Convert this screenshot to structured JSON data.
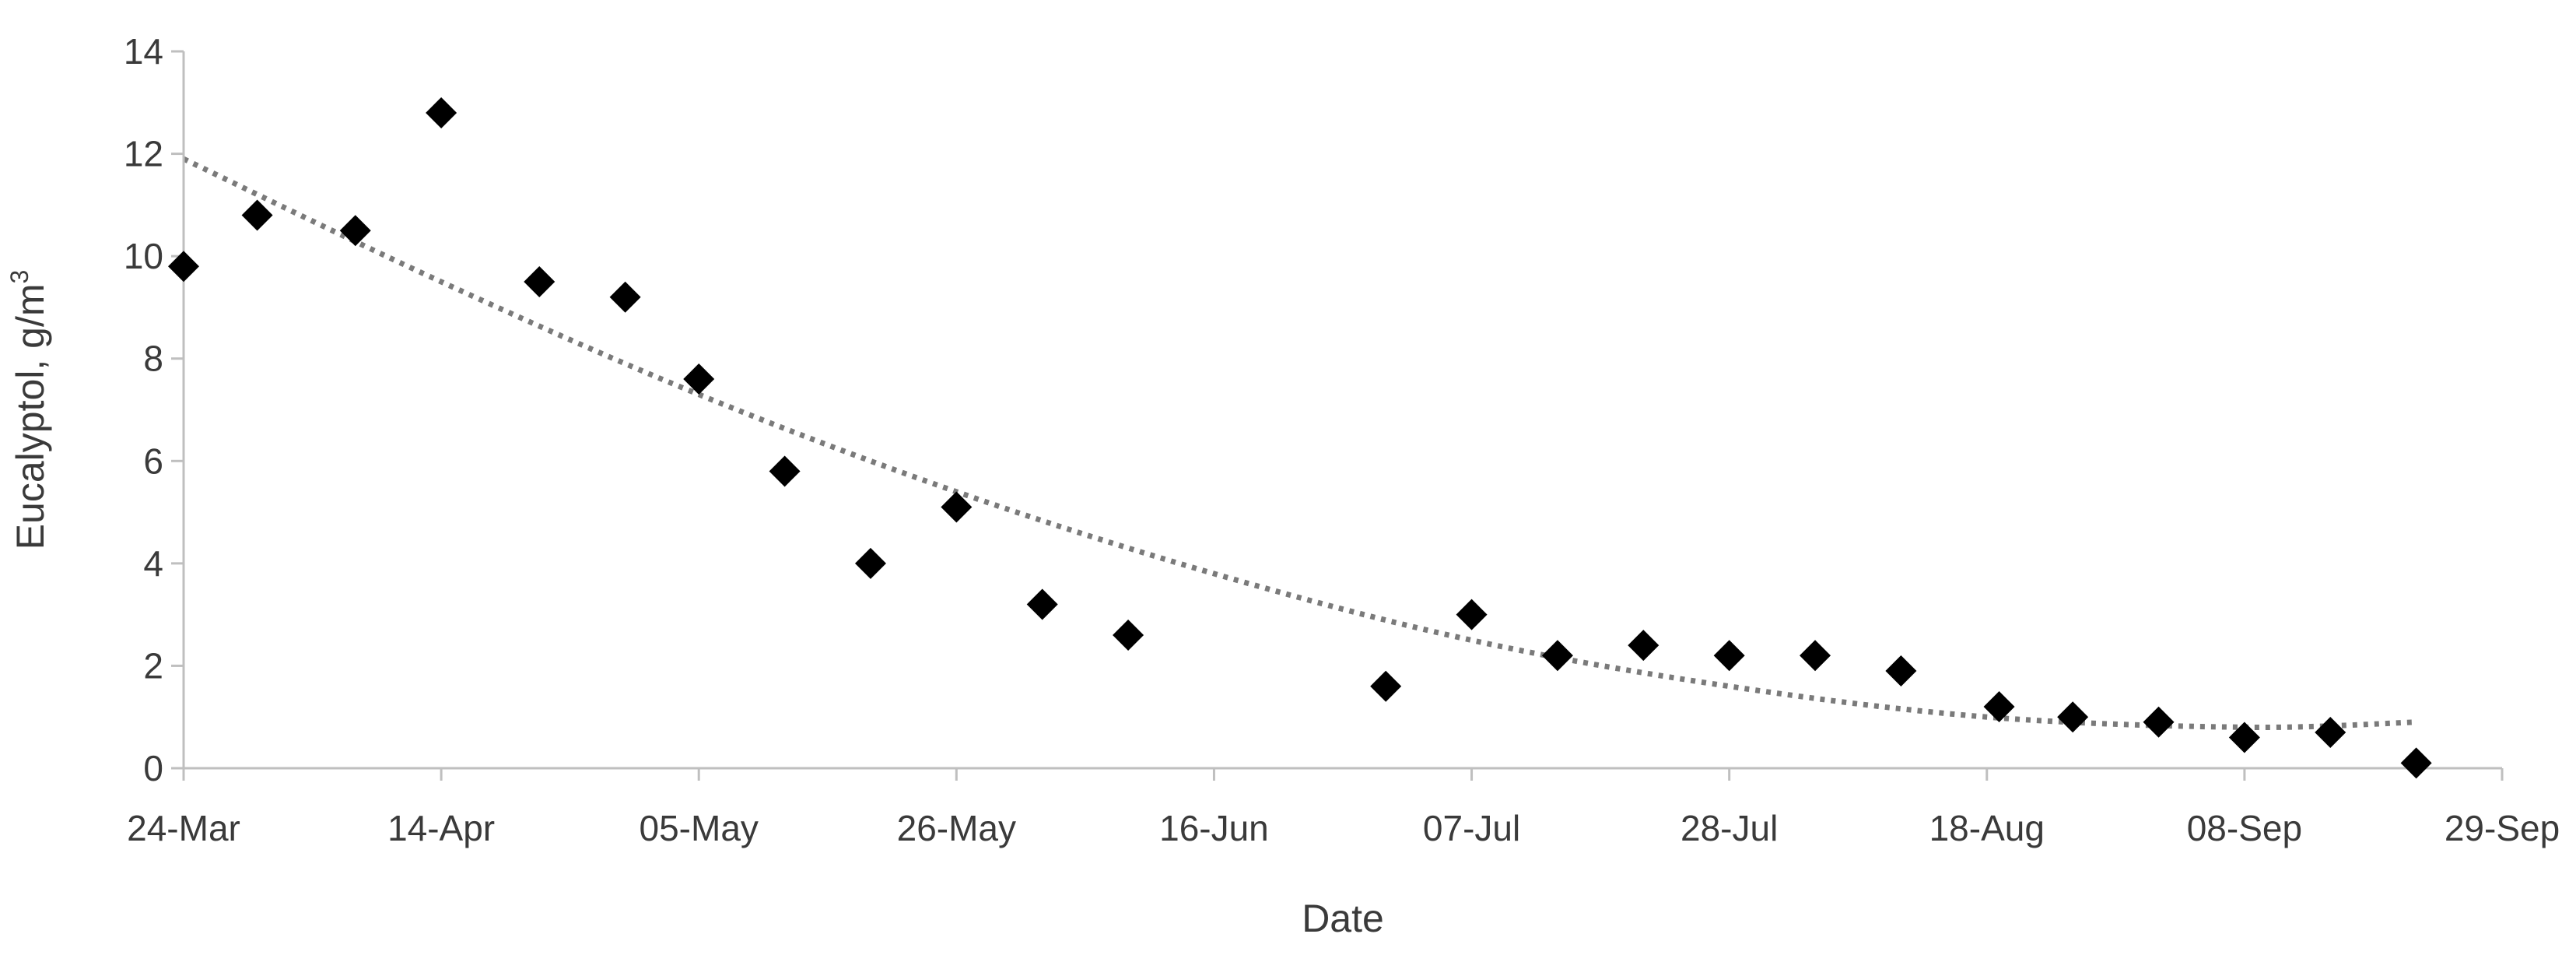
{
  "chart_data": {
    "type": "scatter",
    "title": "",
    "xlabel": "Date",
    "ylabel": "Eucalyptol, g/m",
    "ylabel_superscript": "3",
    "x_tick_labels": [
      "24-Mar",
      "14-Apr",
      "05-May",
      "26-May",
      "16-Jun",
      "07-Jul",
      "28-Jul",
      "18-Aug",
      "08-Sep",
      "29-Sep"
    ],
    "y_ticks": [
      0,
      2,
      4,
      6,
      8,
      10,
      12,
      14
    ],
    "xlim": [
      "2023-03-24",
      "2023-09-29"
    ],
    "ylim": [
      0,
      14
    ],
    "grid": false,
    "legend": "none",
    "marker": "diamond",
    "marker_color": "#000000",
    "series": [
      {
        "x": [
          "2023-03-24",
          "2023-03-30",
          "2023-04-07",
          "2023-04-14",
          "2023-04-22",
          "2023-04-29",
          "2023-05-05",
          "2023-05-12",
          "2023-05-19",
          "2023-05-26",
          "2023-06-02",
          "2023-06-09",
          "2023-06-30",
          "2023-07-07",
          "2023-07-14",
          "2023-07-21",
          "2023-07-28",
          "2023-08-04",
          "2023-08-11",
          "2023-08-19",
          "2023-08-25",
          "2023-09-01",
          "2023-09-08",
          "2023-09-15",
          "2023-09-22"
        ],
        "y": [
          9.8,
          10.8,
          10.5,
          12.8,
          9.5,
          9.2,
          7.6,
          5.8,
          4.0,
          5.1,
          3.2,
          2.6,
          1.6,
          3.0,
          2.2,
          2.4,
          2.2,
          2.2,
          1.9,
          1.2,
          1.0,
          0.9,
          0.6,
          0.7,
          0.1
        ]
      }
    ],
    "trendline": {
      "style": "dotted",
      "type": "polynomial",
      "color": "#7a7a7a",
      "x": [
        "2023-03-24",
        "2023-04-14",
        "2023-05-05",
        "2023-05-26",
        "2023-06-16",
        "2023-07-07",
        "2023-07-28",
        "2023-08-18",
        "2023-09-08",
        "2023-09-22"
      ],
      "y": [
        11.9,
        9.5,
        7.3,
        5.4,
        3.8,
        2.5,
        1.6,
        1.0,
        0.8,
        0.9
      ]
    }
  }
}
